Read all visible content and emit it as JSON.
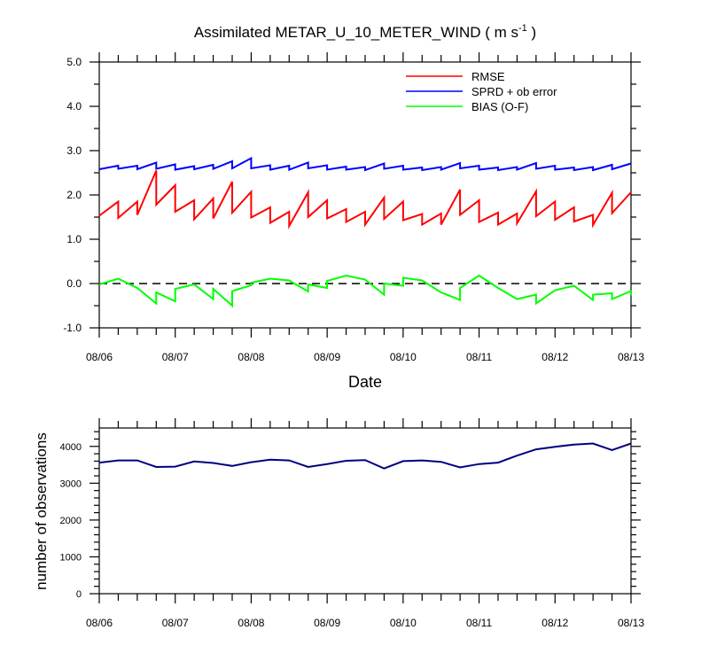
{
  "chart_data": [
    {
      "type": "line",
      "title": "Assimilated METAR_U_10_METER_WIND ( m s",
      "title_unit_exponent": "-1",
      "title_close": " )",
      "xlabel": "Date",
      "ylabel": "",
      "x_tick_labels": [
        "08/06",
        "08/07",
        "08/08",
        "08/09",
        "08/10",
        "08/11",
        "08/12",
        "08/13"
      ],
      "x_range_days": [
        0,
        7
      ],
      "ylim": [
        -1.0,
        5.0
      ],
      "y_tick_labels": [
        "-1.0",
        "0.0",
        "1.0",
        "2.0",
        "3.0",
        "4.0",
        "5.0"
      ],
      "zero_reference_line": true,
      "legend_position": "top-right",
      "colors": {
        "RMSE": "#ff0000",
        "SPRD + ob error": "#0000ff",
        "BIAS (O-F)": "#00ff00",
        "reference": "#000000"
      },
      "series": [
        {
          "name": "RMSE",
          "color": "#ff0000",
          "points": [
            [
              0.0,
              1.53
            ],
            [
              0.25,
              1.85
            ],
            [
              0.25,
              1.48
            ],
            [
              0.5,
              1.85
            ],
            [
              0.5,
              1.55
            ],
            [
              0.75,
              2.55
            ],
            [
              0.75,
              1.78
            ],
            [
              1.0,
              2.22
            ],
            [
              1.0,
              1.62
            ],
            [
              1.25,
              1.88
            ],
            [
              1.25,
              1.45
            ],
            [
              1.5,
              1.92
            ],
            [
              1.5,
              1.47
            ],
            [
              1.75,
              2.3
            ],
            [
              1.75,
              1.6
            ],
            [
              2.0,
              2.07
            ],
            [
              2.0,
              1.49
            ],
            [
              2.25,
              1.72
            ],
            [
              2.25,
              1.37
            ],
            [
              2.5,
              1.62
            ],
            [
              2.5,
              1.3
            ],
            [
              2.75,
              2.06
            ],
            [
              2.75,
              1.5
            ],
            [
              3.0,
              1.88
            ],
            [
              3.0,
              1.47
            ],
            [
              3.25,
              1.68
            ],
            [
              3.25,
              1.39
            ],
            [
              3.5,
              1.62
            ],
            [
              3.5,
              1.33
            ],
            [
              3.75,
              1.94
            ],
            [
              3.75,
              1.46
            ],
            [
              4.0,
              1.85
            ],
            [
              4.0,
              1.43
            ],
            [
              4.25,
              1.57
            ],
            [
              4.25,
              1.33
            ],
            [
              4.5,
              1.58
            ],
            [
              4.5,
              1.33
            ],
            [
              4.75,
              2.12
            ],
            [
              4.75,
              1.55
            ],
            [
              5.0,
              1.88
            ],
            [
              5.0,
              1.39
            ],
            [
              5.25,
              1.6
            ],
            [
              5.25,
              1.33
            ],
            [
              5.5,
              1.58
            ],
            [
              5.5,
              1.36
            ],
            [
              5.75,
              2.08
            ],
            [
              5.75,
              1.52
            ],
            [
              6.0,
              1.85
            ],
            [
              6.0,
              1.44
            ],
            [
              6.25,
              1.72
            ],
            [
              6.25,
              1.4
            ],
            [
              6.5,
              1.55
            ],
            [
              6.5,
              1.32
            ],
            [
              6.75,
              2.05
            ],
            [
              6.75,
              1.59
            ],
            [
              7.0,
              2.06
            ]
          ]
        },
        {
          "name": "SPRD + ob error",
          "color": "#0000ff",
          "points": [
            [
              0.0,
              2.58
            ],
            [
              0.25,
              2.66
            ],
            [
              0.25,
              2.59
            ],
            [
              0.5,
              2.66
            ],
            [
              0.5,
              2.58
            ],
            [
              0.75,
              2.73
            ],
            [
              0.75,
              2.59
            ],
            [
              1.0,
              2.69
            ],
            [
              1.0,
              2.57
            ],
            [
              1.25,
              2.65
            ],
            [
              1.25,
              2.58
            ],
            [
              1.5,
              2.68
            ],
            [
              1.5,
              2.59
            ],
            [
              1.75,
              2.76
            ],
            [
              1.75,
              2.6
            ],
            [
              2.0,
              2.83
            ],
            [
              2.0,
              2.6
            ],
            [
              2.25,
              2.67
            ],
            [
              2.25,
              2.57
            ],
            [
              2.5,
              2.66
            ],
            [
              2.5,
              2.57
            ],
            [
              2.75,
              2.73
            ],
            [
              2.75,
              2.6
            ],
            [
              3.0,
              2.67
            ],
            [
              3.0,
              2.57
            ],
            [
              3.25,
              2.64
            ],
            [
              3.25,
              2.57
            ],
            [
              3.5,
              2.63
            ],
            [
              3.5,
              2.56
            ],
            [
              3.75,
              2.71
            ],
            [
              3.75,
              2.59
            ],
            [
              4.0,
              2.66
            ],
            [
              4.0,
              2.57
            ],
            [
              4.25,
              2.62
            ],
            [
              4.25,
              2.56
            ],
            [
              4.5,
              2.63
            ],
            [
              4.5,
              2.57
            ],
            [
              4.75,
              2.72
            ],
            [
              4.75,
              2.6
            ],
            [
              5.0,
              2.66
            ],
            [
              5.0,
              2.57
            ],
            [
              5.25,
              2.62
            ],
            [
              5.25,
              2.56
            ],
            [
              5.5,
              2.63
            ],
            [
              5.5,
              2.57
            ],
            [
              5.75,
              2.72
            ],
            [
              5.75,
              2.59
            ],
            [
              6.0,
              2.66
            ],
            [
              6.0,
              2.57
            ],
            [
              6.25,
              2.62
            ],
            [
              6.25,
              2.56
            ],
            [
              6.5,
              2.63
            ],
            [
              6.5,
              2.56
            ],
            [
              6.75,
              2.68
            ],
            [
              6.75,
              2.58
            ],
            [
              7.0,
              2.71
            ]
          ]
        },
        {
          "name": "BIAS (O-F)",
          "color": "#00ff00",
          "points": [
            [
              0.0,
              -0.02
            ],
            [
              0.25,
              0.11
            ],
            [
              0.5,
              -0.1
            ],
            [
              0.75,
              -0.45
            ],
            [
              0.75,
              -0.2
            ],
            [
              1.0,
              -0.4
            ],
            [
              1.0,
              -0.12
            ],
            [
              1.25,
              -0.02
            ],
            [
              1.5,
              -0.35
            ],
            [
              1.5,
              -0.12
            ],
            [
              1.75,
              -0.5
            ],
            [
              1.75,
              -0.17
            ],
            [
              2.0,
              -0.04
            ],
            [
              2.0,
              0.02
            ],
            [
              2.25,
              0.11
            ],
            [
              2.5,
              0.07
            ],
            [
              2.75,
              -0.18
            ],
            [
              2.75,
              -0.02
            ],
            [
              3.0,
              -0.1
            ],
            [
              3.0,
              0.06
            ],
            [
              3.25,
              0.18
            ],
            [
              3.5,
              0.09
            ],
            [
              3.75,
              -0.25
            ],
            [
              3.75,
              0.0
            ],
            [
              4.0,
              -0.05
            ],
            [
              4.0,
              0.13
            ],
            [
              4.25,
              0.07
            ],
            [
              4.5,
              -0.2
            ],
            [
              4.75,
              -0.37
            ],
            [
              4.75,
              -0.1
            ],
            [
              5.0,
              0.18
            ],
            [
              5.25,
              -0.1
            ],
            [
              5.5,
              -0.35
            ],
            [
              5.75,
              -0.25
            ],
            [
              5.75,
              -0.45
            ],
            [
              6.0,
              -0.15
            ],
            [
              6.25,
              -0.05
            ],
            [
              6.5,
              -0.37
            ],
            [
              6.5,
              -0.25
            ],
            [
              6.75,
              -0.22
            ],
            [
              6.75,
              -0.35
            ],
            [
              7.0,
              -0.17
            ],
            [
              7.0,
              -0.27
            ]
          ]
        }
      ]
    },
    {
      "type": "line",
      "title": "",
      "xlabel": "",
      "ylabel": "number of observations",
      "x_tick_labels": [
        "08/06",
        "08/07",
        "08/08",
        "08/09",
        "08/10",
        "08/11",
        "08/12",
        "08/13"
      ],
      "x_range_days": [
        0,
        7
      ],
      "ylim": [
        0,
        4500
      ],
      "y_tick_labels": [
        "0",
        "1000",
        "2000",
        "3000",
        "4000"
      ],
      "colors": {
        "line": "#000080"
      },
      "series": [
        {
          "color": "#000080",
          "points": [
            [
              0.0,
              3560
            ],
            [
              0.25,
              3620
            ],
            [
              0.5,
              3620
            ],
            [
              0.75,
              3440
            ],
            [
              1.0,
              3450
            ],
            [
              1.25,
              3590
            ],
            [
              1.5,
              3550
            ],
            [
              1.75,
              3470
            ],
            [
              2.0,
              3570
            ],
            [
              2.25,
              3640
            ],
            [
              2.5,
              3620
            ],
            [
              2.75,
              3440
            ],
            [
              3.0,
              3520
            ],
            [
              3.25,
              3610
            ],
            [
              3.5,
              3630
            ],
            [
              3.75,
              3400
            ],
            [
              4.0,
              3600
            ],
            [
              4.25,
              3620
            ],
            [
              4.5,
              3580
            ],
            [
              4.75,
              3430
            ],
            [
              5.0,
              3520
            ],
            [
              5.25,
              3560
            ],
            [
              5.5,
              3750
            ],
            [
              5.75,
              3920
            ],
            [
              6.0,
              3990
            ],
            [
              6.25,
              4050
            ],
            [
              6.5,
              4080
            ],
            [
              6.75,
              3900
            ],
            [
              7.0,
              4080
            ]
          ]
        }
      ]
    }
  ]
}
